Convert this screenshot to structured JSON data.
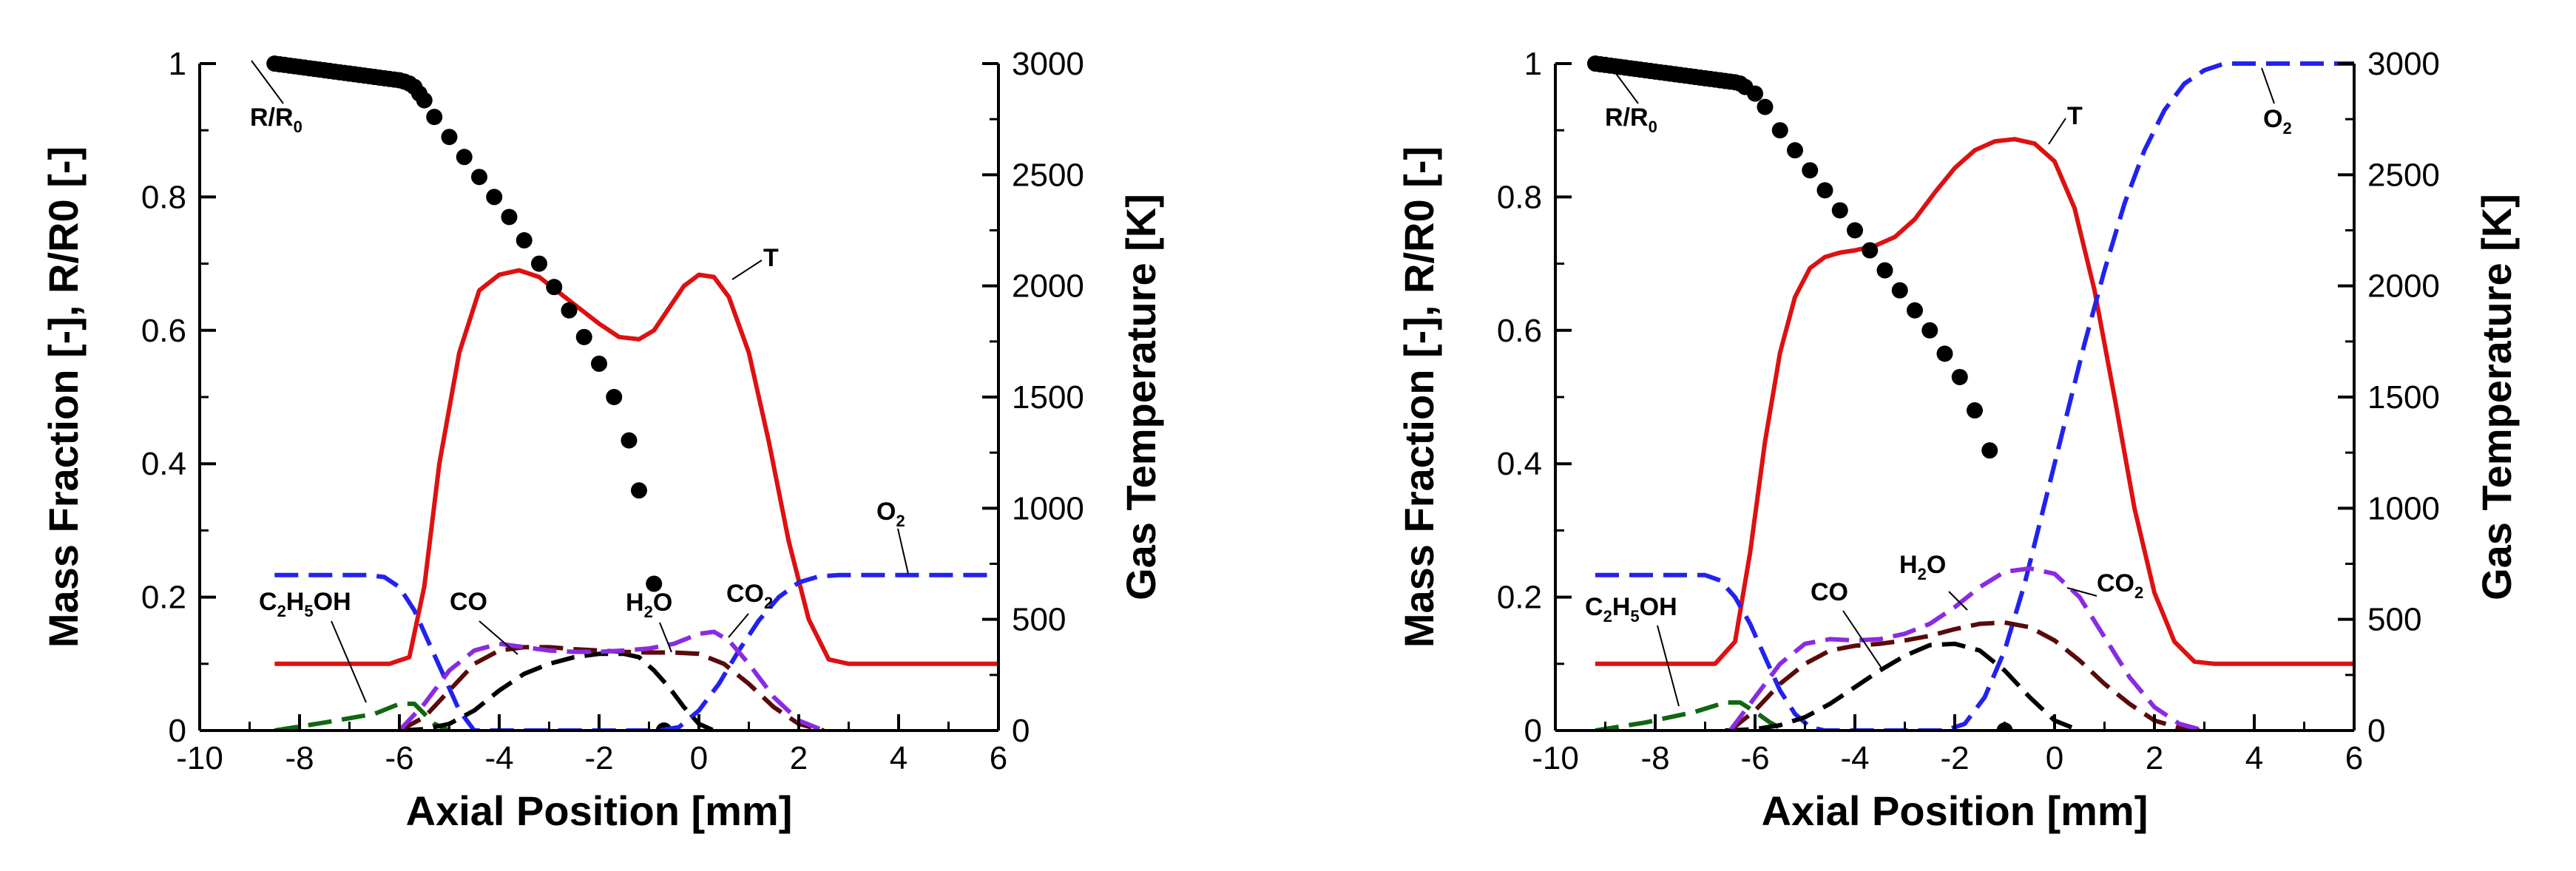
{
  "chart_data": [
    {
      "type": "line",
      "xlabel": "Axial Position [mm]",
      "ylabel": "Mass Fraction [-], R/R0 [-]",
      "y2label": "Gas Temperature [K]",
      "xlim": [
        -10,
        6
      ],
      "ylim": [
        0,
        1
      ],
      "y2lim": [
        0,
        3000
      ],
      "xticks": [
        "-10",
        "-8",
        "-6",
        "-4",
        "-2",
        "0",
        "2",
        "4",
        "6"
      ],
      "yticks": [
        "0",
        "0.2",
        "0.4",
        "0.6",
        "0.8",
        "1"
      ],
      "y2ticks": [
        "0",
        "500",
        "1000",
        "1500",
        "2000",
        "2500",
        "3000"
      ],
      "series": [
        {
          "name": "T",
          "axis": "right",
          "color": "#dd1111",
          "dash": "solid",
          "x": [
            -8.5,
            -6.2,
            -5.8,
            -5.5,
            -5.2,
            -4.8,
            -4.4,
            -4.0,
            -3.6,
            -3.2,
            -2.8,
            -2.4,
            -2.0,
            -1.6,
            -1.2,
            -0.9,
            -0.6,
            -0.3,
            0.0,
            0.3,
            0.6,
            1.0,
            1.4,
            1.8,
            2.2,
            2.6,
            3.0,
            6.0
          ],
          "y": [
            300,
            300,
            330,
            650,
            1200,
            1700,
            1980,
            2050,
            2070,
            2040,
            1970,
            1900,
            1830,
            1770,
            1760,
            1800,
            1900,
            2000,
            2050,
            2040,
            1950,
            1700,
            1300,
            850,
            500,
            320,
            300,
            300
          ]
        },
        {
          "name": "R/R0",
          "axis": "left",
          "color": "#000000",
          "type": "scatter",
          "x": [
            -8.5,
            -8.4,
            -8.3,
            -8.2,
            -8.1,
            -8.0,
            -7.9,
            -7.8,
            -7.7,
            -7.6,
            -7.5,
            -7.4,
            -7.3,
            -7.2,
            -7.1,
            -7.0,
            -6.9,
            -6.8,
            -6.7,
            -6.6,
            -6.5,
            -6.4,
            -6.3,
            -6.2,
            -6.1,
            -6.0,
            -5.9,
            -5.8,
            -5.7,
            -5.6,
            -5.5,
            -5.3,
            -5.0,
            -4.7,
            -4.4,
            -4.1,
            -3.8,
            -3.5,
            -3.2,
            -2.9,
            -2.6,
            -2.3,
            -2.0,
            -1.7,
            -1.4,
            -1.2,
            -0.9,
            -0.7
          ],
          "y": [
            1.0,
            0.999,
            0.998,
            0.997,
            0.996,
            0.995,
            0.994,
            0.993,
            0.992,
            0.991,
            0.99,
            0.989,
            0.988,
            0.987,
            0.986,
            0.985,
            0.984,
            0.983,
            0.982,
            0.981,
            0.98,
            0.979,
            0.978,
            0.977,
            0.976,
            0.975,
            0.973,
            0.97,
            0.965,
            0.955,
            0.945,
            0.92,
            0.89,
            0.86,
            0.83,
            0.8,
            0.77,
            0.735,
            0.7,
            0.665,
            0.63,
            0.59,
            0.55,
            0.5,
            0.435,
            0.36,
            0.22,
            0.0
          ]
        },
        {
          "name": "O2",
          "axis": "left",
          "color": "#2222ee",
          "dash": "long",
          "x": [
            -8.5,
            -6.6,
            -6.3,
            -6.0,
            -5.7,
            -5.4,
            -5.1,
            -4.8,
            -4.5,
            -0.8,
            -0.4,
            0.0,
            0.4,
            0.8,
            1.2,
            1.6,
            2.0,
            2.4,
            2.8,
            3.2,
            6.0
          ],
          "y": [
            0.233,
            0.233,
            0.23,
            0.215,
            0.18,
            0.13,
            0.08,
            0.03,
            0.0,
            0.0,
            0.005,
            0.03,
            0.07,
            0.12,
            0.165,
            0.2,
            0.222,
            0.231,
            0.233,
            0.233,
            0.233
          ]
        },
        {
          "name": "C2H5OH",
          "axis": "left",
          "color": "#116611",
          "dash": "long",
          "x": [
            -8.5,
            -7.5,
            -6.5,
            -6.0,
            -5.7,
            -5.5,
            -5.3,
            -5.0
          ],
          "y": [
            0.0,
            0.012,
            0.025,
            0.04,
            0.04,
            0.025,
            0.01,
            0.0
          ]
        },
        {
          "name": "CO",
          "axis": "left",
          "color": "#000000",
          "dash": "long",
          "x": [
            -6.0,
            -5.5,
            -5.0,
            -4.5,
            -4.0,
            -3.5,
            -3.0,
            -2.5,
            -2.0,
            -1.5,
            -1.2,
            -0.9,
            -0.6,
            -0.3,
            0.0,
            0.3
          ],
          "y": [
            0.0,
            0.002,
            0.01,
            0.03,
            0.06,
            0.085,
            0.1,
            0.11,
            0.115,
            0.115,
            0.11,
            0.09,
            0.065,
            0.035,
            0.01,
            0.0
          ]
        },
        {
          "name": "H2O",
          "axis": "left",
          "color": "#5a0a0a",
          "dash": "long",
          "x": [
            -6.0,
            -5.5,
            -5.0,
            -4.5,
            -4.0,
            -3.5,
            -3.0,
            -2.5,
            -2.0,
            -1.5,
            -1.0,
            -0.5,
            0.0,
            0.5,
            1.0,
            1.5,
            2.0,
            2.5
          ],
          "y": [
            0.0,
            0.02,
            0.06,
            0.1,
            0.12,
            0.125,
            0.125,
            0.122,
            0.12,
            0.118,
            0.117,
            0.117,
            0.115,
            0.1,
            0.07,
            0.035,
            0.01,
            0.0
          ]
        },
        {
          "name": "CO2",
          "axis": "left",
          "color": "#8a2be2",
          "dash": "long",
          "x": [
            -6.0,
            -5.5,
            -5.0,
            -4.5,
            -4.0,
            -3.5,
            -3.0,
            -2.5,
            -2.0,
            -1.5,
            -1.0,
            -0.5,
            0.0,
            0.3,
            0.6,
            1.0,
            1.5,
            2.0,
            2.5
          ],
          "y": [
            0.0,
            0.04,
            0.09,
            0.12,
            0.13,
            0.125,
            0.12,
            0.118,
            0.118,
            0.12,
            0.123,
            0.13,
            0.145,
            0.148,
            0.135,
            0.1,
            0.05,
            0.015,
            0.0
          ]
        }
      ],
      "annotations": [
        {
          "text": "R/R",
          "sub": "0"
        },
        {
          "text": "T"
        },
        {
          "text": "O",
          "sub": "2"
        },
        {
          "text": "C",
          "sub": "2",
          "text2": "H",
          "sub2": "5",
          "text3": "OH"
        },
        {
          "text": "CO"
        },
        {
          "text": "H",
          "sub": "2",
          "text2": "O"
        },
        {
          "text": "CO",
          "sub": "2"
        }
      ]
    },
    {
      "type": "line",
      "xlabel": "Axial Position [mm]",
      "ylabel": "Mass Fraction [-], R/R0 [-]",
      "y2label": "Gas Temperature [K]",
      "xlim": [
        -10,
        6
      ],
      "ylim": [
        0,
        1
      ],
      "y2lim": [
        0,
        3000
      ],
      "xticks": [
        "-10",
        "-8",
        "-6",
        "-4",
        "-2",
        "0",
        "2",
        "4",
        "6"
      ],
      "yticks": [
        "0",
        "0.2",
        "0.4",
        "0.6",
        "0.8",
        "1"
      ],
      "y2ticks": [
        "0",
        "500",
        "1000",
        "1500",
        "2000",
        "2500",
        "3000"
      ],
      "series": [
        {
          "name": "T",
          "axis": "right",
          "color": "#dd1111",
          "dash": "solid",
          "x": [
            -9.2,
            -6.8,
            -6.4,
            -6.1,
            -5.8,
            -5.5,
            -5.2,
            -4.9,
            -4.6,
            -4.3,
            -4.0,
            -3.6,
            -3.2,
            -2.8,
            -2.4,
            -2.0,
            -1.6,
            -1.2,
            -0.8,
            -0.4,
            0.0,
            0.4,
            0.8,
            1.2,
            1.6,
            2.0,
            2.4,
            2.8,
            3.2,
            6.0
          ],
          "y": [
            300,
            300,
            400,
            800,
            1300,
            1700,
            1950,
            2080,
            2130,
            2150,
            2160,
            2180,
            2220,
            2300,
            2420,
            2530,
            2610,
            2650,
            2660,
            2640,
            2560,
            2350,
            1980,
            1500,
            1000,
            620,
            400,
            310,
            300,
            300
          ]
        },
        {
          "name": "R/R0",
          "axis": "left",
          "color": "#000000",
          "type": "scatter",
          "x": [
            -9.2,
            -9.1,
            -9.0,
            -8.9,
            -8.8,
            -8.7,
            -8.6,
            -8.5,
            -8.4,
            -8.3,
            -8.2,
            -8.1,
            -8.0,
            -7.9,
            -7.8,
            -7.7,
            -7.6,
            -7.5,
            -7.4,
            -7.3,
            -7.2,
            -7.1,
            -7.0,
            -6.9,
            -6.8,
            -6.7,
            -6.6,
            -6.5,
            -6.4,
            -6.3,
            -6.2,
            -6.0,
            -5.8,
            -5.5,
            -5.2,
            -4.9,
            -4.6,
            -4.3,
            -4.0,
            -3.7,
            -3.4,
            -3.1,
            -2.8,
            -2.5,
            -2.2,
            -1.9,
            -1.6,
            -1.3,
            -1.0
          ],
          "y": [
            1.0,
            0.999,
            0.998,
            0.997,
            0.996,
            0.995,
            0.994,
            0.993,
            0.992,
            0.991,
            0.99,
            0.989,
            0.988,
            0.987,
            0.986,
            0.985,
            0.984,
            0.983,
            0.982,
            0.981,
            0.98,
            0.979,
            0.978,
            0.977,
            0.976,
            0.975,
            0.974,
            0.973,
            0.972,
            0.97,
            0.965,
            0.955,
            0.935,
            0.9,
            0.87,
            0.84,
            0.81,
            0.78,
            0.75,
            0.72,
            0.69,
            0.66,
            0.63,
            0.6,
            0.565,
            0.53,
            0.48,
            0.42,
            0.0
          ]
        },
        {
          "name": "O2",
          "axis": "left",
          "color": "#2222ee",
          "dash": "long",
          "x": [
            -9.2,
            -7.0,
            -6.7,
            -6.4,
            -6.1,
            -5.8,
            -5.5,
            -5.2,
            -4.9,
            -4.6,
            -2.2,
            -1.8,
            -1.4,
            -1.0,
            -0.6,
            -0.2,
            0.2,
            0.6,
            1.0,
            1.4,
            1.8,
            2.2,
            2.6,
            3.0,
            3.4,
            6.0
          ],
          "y": [
            0.233,
            0.233,
            0.225,
            0.2,
            0.16,
            0.11,
            0.06,
            0.025,
            0.005,
            0.0,
            0.0,
            0.01,
            0.05,
            0.12,
            0.22,
            0.34,
            0.46,
            0.58,
            0.69,
            0.79,
            0.87,
            0.93,
            0.97,
            0.99,
            1.0,
            1.0
          ]
        },
        {
          "name": "C2H5OH",
          "axis": "left",
          "color": "#116611",
          "dash": "long",
          "x": [
            -9.2,
            -8.2,
            -7.2,
            -6.6,
            -6.3,
            -6.0,
            -5.7,
            -5.4
          ],
          "y": [
            0.0,
            0.012,
            0.028,
            0.042,
            0.042,
            0.028,
            0.012,
            0.0
          ]
        },
        {
          "name": "CO",
          "axis": "left",
          "color": "#000000",
          "dash": "long",
          "x": [
            -6.6,
            -6.0,
            -5.5,
            -5.0,
            -4.5,
            -4.0,
            -3.5,
            -3.0,
            -2.5,
            -2.0,
            -1.5,
            -1.0,
            -0.5,
            0.0,
            0.5
          ],
          "y": [
            0.0,
            0.002,
            0.008,
            0.02,
            0.04,
            0.065,
            0.09,
            0.112,
            0.128,
            0.13,
            0.12,
            0.09,
            0.05,
            0.015,
            0.0
          ]
        },
        {
          "name": "H2O",
          "axis": "left",
          "color": "#5a0a0a",
          "dash": "long",
          "x": [
            -6.5,
            -6.0,
            -5.5,
            -5.0,
            -4.5,
            -4.0,
            -3.5,
            -3.0,
            -2.5,
            -2.0,
            -1.5,
            -1.0,
            -0.5,
            0.0,
            0.5,
            1.0,
            1.5,
            2.0,
            2.5,
            3.0
          ],
          "y": [
            0.0,
            0.03,
            0.07,
            0.1,
            0.12,
            0.127,
            0.13,
            0.135,
            0.142,
            0.152,
            0.16,
            0.162,
            0.155,
            0.135,
            0.105,
            0.07,
            0.04,
            0.015,
            0.004,
            0.0
          ]
        },
        {
          "name": "CO2",
          "axis": "left",
          "color": "#8a2be2",
          "dash": "long",
          "x": [
            -6.5,
            -6.0,
            -5.5,
            -5.0,
            -4.5,
            -4.0,
            -3.5,
            -3.0,
            -2.5,
            -2.0,
            -1.5,
            -1.0,
            -0.5,
            0.0,
            0.5,
            1.0,
            1.5,
            2.0,
            2.5,
            3.0
          ],
          "y": [
            0.0,
            0.05,
            0.1,
            0.13,
            0.137,
            0.135,
            0.137,
            0.145,
            0.16,
            0.185,
            0.215,
            0.238,
            0.243,
            0.235,
            0.2,
            0.14,
            0.08,
            0.035,
            0.01,
            0.0
          ]
        }
      ],
      "annotations": [
        {
          "text": "R/R",
          "sub": "0"
        },
        {
          "text": "T"
        },
        {
          "text": "O",
          "sub": "2"
        },
        {
          "text": "C",
          "sub": "2",
          "text2": "H",
          "sub2": "5",
          "text3": "OH"
        },
        {
          "text": "CO"
        },
        {
          "text": "H",
          "sub": "2",
          "text2": "O"
        },
        {
          "text": "CO",
          "sub": "2"
        }
      ]
    }
  ]
}
